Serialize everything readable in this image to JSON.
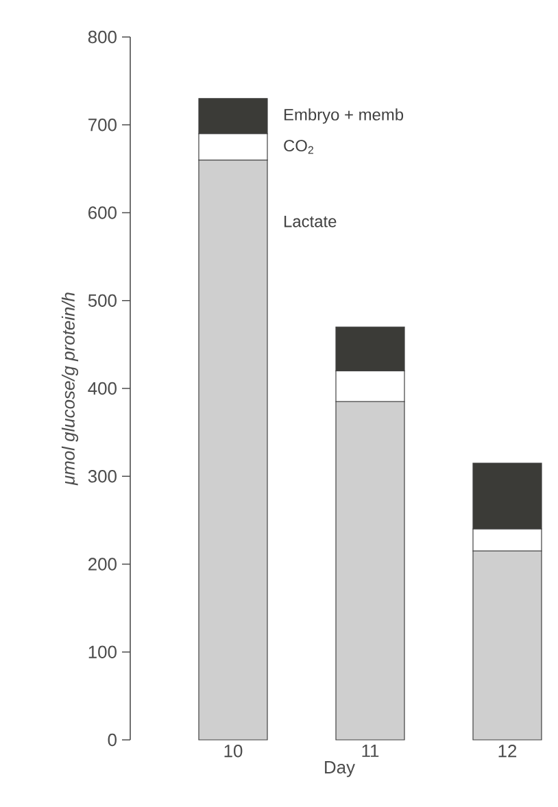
{
  "chart_data": {
    "type": "bar",
    "stacked": true,
    "xlabel": "Day",
    "ylabel": "μmol glucose/g protein/h",
    "categories": [
      "10",
      "11",
      "12"
    ],
    "series": [
      {
        "name": "Lactate",
        "color": "#cfcfcf",
        "values": [
          660,
          385,
          215
        ]
      },
      {
        "name": "CO$_{2}$",
        "color": "#ffffff",
        "values": [
          30,
          35,
          25
        ]
      },
      {
        "name": "Embryo + memb",
        "color": "#3b3b37",
        "values": [
          40,
          50,
          75
        ]
      }
    ],
    "ylim": [
      0,
      800
    ],
    "yticks": [
      0,
      100,
      200,
      300,
      400,
      500,
      600,
      700,
      800
    ]
  }
}
